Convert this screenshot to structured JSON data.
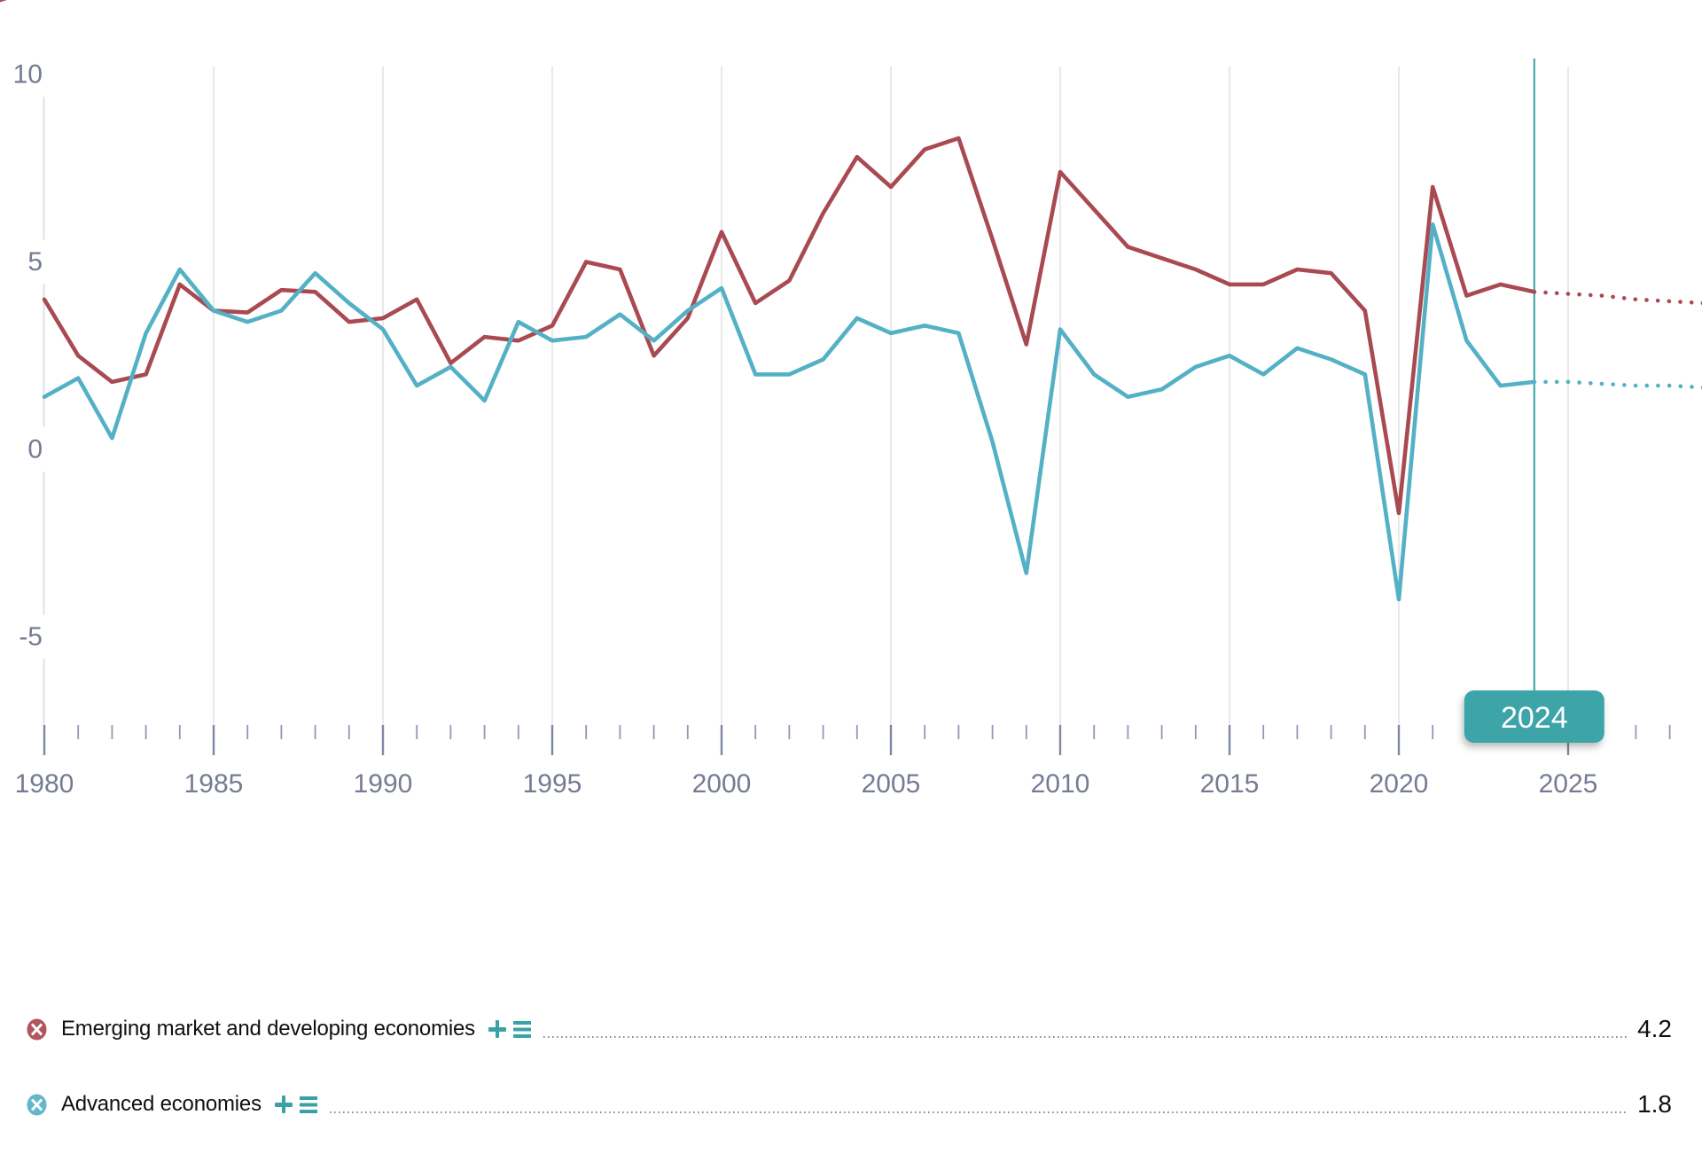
{
  "chart_data": {
    "type": "line",
    "title": "",
    "xlabel": "",
    "ylabel": "",
    "x": [
      1980,
      1981,
      1982,
      1983,
      1984,
      1985,
      1986,
      1987,
      1988,
      1989,
      1990,
      1991,
      1992,
      1993,
      1994,
      1995,
      1996,
      1997,
      1998,
      1999,
      2000,
      2001,
      2002,
      2003,
      2004,
      2005,
      2006,
      2007,
      2008,
      2009,
      2010,
      2011,
      2012,
      2013,
      2014,
      2015,
      2016,
      2017,
      2018,
      2019,
      2020,
      2021,
      2022,
      2023,
      2024,
      2025,
      2026,
      2027,
      2028,
      2029
    ],
    "series": [
      {
        "name": "Emerging market and developing economies",
        "color": "#a94a52",
        "values": [
          4.0,
          2.5,
          1.8,
          2.0,
          4.4,
          3.7,
          3.65,
          4.25,
          4.2,
          3.4,
          3.5,
          4.0,
          2.3,
          3.0,
          2.9,
          3.3,
          5.0,
          4.8,
          2.5,
          3.5,
          5.8,
          3.9,
          4.5,
          6.3,
          7.8,
          7.0,
          8.0,
          8.3,
          5.6,
          2.8,
          7.4,
          6.4,
          5.4,
          5.1,
          4.8,
          4.4,
          4.4,
          4.8,
          4.7,
          3.7,
          -1.7,
          7.0,
          4.1,
          4.4,
          4.2,
          4.15,
          4.1,
          4.0,
          3.95,
          3.9
        ]
      },
      {
        "name": "Advanced economies",
        "color": "#54b1c5",
        "values": [
          1.4,
          1.9,
          0.3,
          3.1,
          4.8,
          3.7,
          3.4,
          3.7,
          4.7,
          3.9,
          3.2,
          1.7,
          2.2,
          1.3,
          3.4,
          2.9,
          3.0,
          3.6,
          2.9,
          3.7,
          4.3,
          2.0,
          2.0,
          2.4,
          3.5,
          3.1,
          3.3,
          3.1,
          0.2,
          -3.3,
          3.2,
          2.0,
          1.4,
          1.6,
          2.2,
          2.5,
          2.0,
          2.7,
          2.4,
          2.0,
          -4.0,
          6.0,
          2.9,
          1.7,
          1.8,
          1.8,
          1.75,
          1.7,
          1.7,
          1.65
        ]
      }
    ],
    "projection_dotted_from": 2024,
    "selected_year": {
      "year": 2024,
      "label": "2024"
    },
    "ylim": [
      -7.4,
      10.2
    ],
    "yticks": {
      "values": [
        10,
        5,
        0,
        -5
      ],
      "labels": [
        "10",
        "5",
        "0",
        "-5"
      ]
    },
    "xticks_labeled": [
      1980,
      1985,
      1990,
      1995,
      2000,
      2005,
      2010,
      2015,
      2020,
      2025
    ],
    "grid_years": [
      1985,
      1990,
      1995,
      2000,
      2005,
      2010,
      2015,
      2020,
      2025
    ],
    "minor_ticks_every_year": true,
    "grid": "vertical-only",
    "legend_position": "bottom"
  },
  "legend": {
    "items": [
      {
        "label": "Emerging market and developing economies",
        "value": "4.2",
        "color": "#b2555e",
        "remove_icon": "x-circle-icon"
      },
      {
        "label": "Advanced economies",
        "value": "1.8",
        "color": "#62b7c9",
        "remove_icon": "x-circle-icon"
      }
    ],
    "add_icon": "plus-icon",
    "options_icon": "list-bars-icon"
  },
  "colors": {
    "red_line": "#a94a52",
    "blue_line": "#54b1c5",
    "teal_accent": "#3aa2a5",
    "marker_box_fill": "#3da4a7",
    "marker_box_text": "#ffffff",
    "gridline": "#dddde2",
    "yaxis_line": "#d9d9dd",
    "tick_major": "#7e86a6",
    "tick_minor": "#9298b4",
    "axis_text": "#757b92",
    "legend_text": "#101010",
    "leader_dot": "#858585",
    "corner_artifact": "#b04a52"
  }
}
